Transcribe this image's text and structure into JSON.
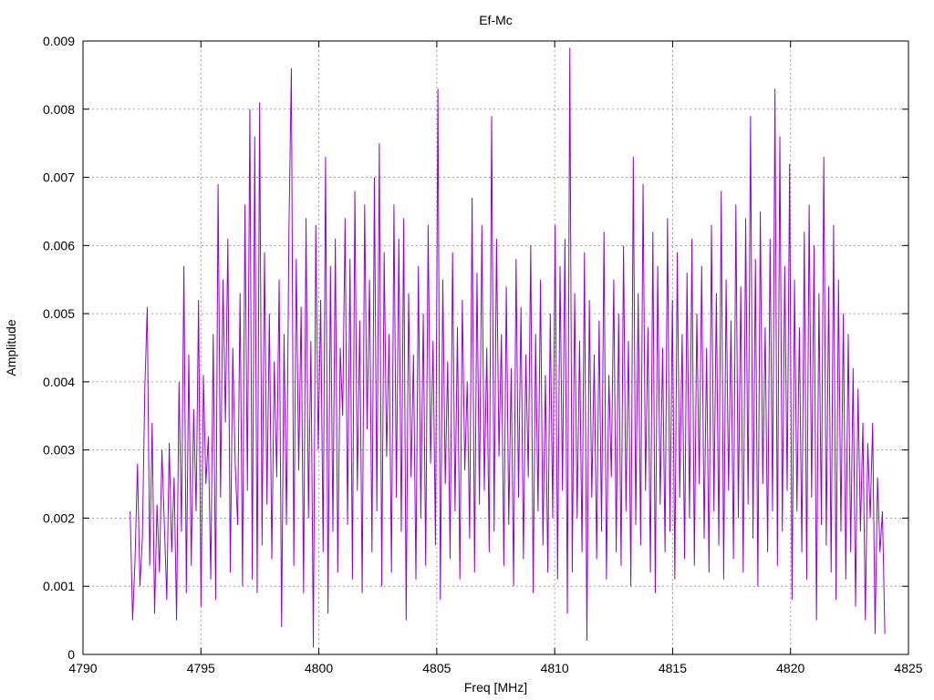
{
  "chart_data": {
    "type": "line",
    "title": "Ef-Mc",
    "xlabel": "Freq [MHz]",
    "ylabel": "Amplitude",
    "xlim": [
      4790,
      4825
    ],
    "ylim": [
      0,
      0.009
    ],
    "x_ticks": [
      4790,
      4795,
      4800,
      4805,
      4810,
      4815,
      4820,
      4825
    ],
    "x_tick_labels": [
      "4790",
      "4795",
      "4800",
      "4805",
      "4810",
      "4815",
      "4820",
      "4825"
    ],
    "y_ticks": [
      0,
      0.001,
      0.002,
      0.003,
      0.004,
      0.005,
      0.006,
      0.007,
      0.008,
      0.009
    ],
    "y_tick_labels": [
      "0",
      "0.001",
      "0.002",
      "0.003",
      "0.004",
      "0.005",
      "0.006",
      "0.007",
      "0.008",
      "0.009"
    ],
    "grid": true,
    "series_color": "#9400d3",
    "x_step": 0.04,
    "series": [
      {
        "x_start": 4792,
        "x_end": 4824,
        "values": [
          0.0021,
          0.0005,
          0.0014,
          0.0028,
          0.001,
          0.0017,
          0.0039,
          0.0051,
          0.0013,
          0.0034,
          0.0006,
          0.0022,
          0.0012,
          0.003,
          0.0019,
          0.0008,
          0.0031,
          0.0015,
          0.0026,
          0.0005,
          0.004,
          0.0018,
          0.0057,
          0.0009,
          0.0044,
          0.0013,
          0.0036,
          0.0021,
          0.0052,
          0.0007,
          0.0041,
          0.0025,
          0.0032,
          0.0011,
          0.0047,
          0.0008,
          0.0069,
          0.0023,
          0.0055,
          0.0034,
          0.0061,
          0.0012,
          0.0045,
          0.0028,
          0.0019,
          0.0053,
          0.001,
          0.0066,
          0.0024,
          0.008,
          0.0011,
          0.0076,
          0.0009,
          0.0081,
          0.0016,
          0.0059,
          0.0022,
          0.005,
          0.0014,
          0.0043,
          0.0026,
          0.0055,
          0.0004,
          0.0047,
          0.0019,
          0.0062,
          0.0086,
          0.0013,
          0.0058,
          0.0027,
          0.0051,
          0.0009,
          0.0064,
          0.002,
          0.0046,
          0.0001,
          0.0063,
          0.003,
          0.0052,
          0.0015,
          0.0073,
          0.0006,
          0.0057,
          0.0018,
          0.0061,
          0.0012,
          0.0045,
          0.0035,
          0.0064,
          0.0019,
          0.0058,
          0.0011,
          0.0068,
          0.0024,
          0.0049,
          0.0009,
          0.0066,
          0.0033,
          0.0055,
          0.0015,
          0.007,
          0.0021,
          0.0075,
          0.001,
          0.0059,
          0.0029,
          0.0047,
          0.0012,
          0.0066,
          0.0023,
          0.0061,
          0.0018,
          0.0064,
          0.0005,
          0.0053,
          0.0026,
          0.0044,
          0.0011,
          0.0057,
          0.002,
          0.005,
          0.0013,
          0.0063,
          0.0028,
          0.0046,
          0.0016,
          0.0083,
          0.0008,
          0.0055,
          0.0025,
          0.0043,
          0.0014,
          0.0059,
          0.0021,
          0.0048,
          0.0011,
          0.0052,
          0.0027,
          0.004,
          0.0017,
          0.0067,
          0.0012,
          0.0056,
          0.0022,
          0.0063,
          0.0024,
          0.0045,
          0.0015,
          0.0079,
          0.0018,
          0.0061,
          0.0029,
          0.0047,
          0.0013,
          0.0054,
          0.0019,
          0.0042,
          0.001,
          0.0058,
          0.0023,
          0.0051,
          0.0014,
          0.0044,
          0.0026,
          0.006,
          0.0009,
          0.0047,
          0.0021,
          0.0055,
          0.0016,
          0.0041,
          0.0012,
          0.005,
          0.002,
          0.0063,
          0.0011,
          0.0057,
          0.0024,
          0.0061,
          0.0006,
          0.0089,
          0.0012,
          0.0053,
          0.002,
          0.0046,
          0.0015,
          0.0059,
          0.0002,
          0.0052,
          0.0023,
          0.0044,
          0.0014,
          0.0049,
          0.0018,
          0.0062,
          0.0011,
          0.0041,
          0.0026,
          0.0055,
          0.0015,
          0.005,
          0.0013,
          0.006,
          0.0021,
          0.0046,
          0.001,
          0.0073,
          0.0019,
          0.0053,
          0.0016,
          0.0069,
          0.0024,
          0.0048,
          0.0012,
          0.0062,
          0.0009,
          0.0057,
          0.0022,
          0.0045,
          0.0015,
          0.0064,
          0.0018,
          0.0052,
          0.0011,
          0.0059,
          0.0023,
          0.0047,
          0.0014,
          0.0056,
          0.002,
          0.0061,
          0.0013,
          0.005,
          0.0025,
          0.0057,
          0.0017,
          0.0045,
          0.0012,
          0.0063,
          0.0021,
          0.0053,
          0.0016,
          0.0068,
          0.0011,
          0.0055,
          0.0024,
          0.0049,
          0.0014,
          0.0066,
          0.002,
          0.0054,
          0.0012,
          0.0064,
          0.0022,
          0.0079,
          0.0017,
          0.0058,
          0.001,
          0.0065,
          0.0025,
          0.0048,
          0.0015,
          0.0061,
          0.0021,
          0.0083,
          0.0013,
          0.0076,
          0.0018,
          0.0057,
          0.0024,
          0.0072,
          0.0008,
          0.0055,
          0.0021,
          0.0048,
          0.0015,
          0.0062,
          0.0011,
          0.0066,
          0.0023,
          0.006,
          0.0005,
          0.0053,
          0.0019,
          0.0073,
          0.0016,
          0.0054,
          0.0012,
          0.0063,
          0.0008,
          0.0055,
          0.0018,
          0.005,
          0.0011,
          0.0047,
          0.0015,
          0.0042,
          0.0007,
          0.0039,
          0.0018,
          0.0034,
          0.0005,
          0.0031,
          0.002,
          0.0034,
          0.0003,
          0.0026,
          0.0015,
          0.0021,
          0.0003
        ]
      }
    ]
  }
}
